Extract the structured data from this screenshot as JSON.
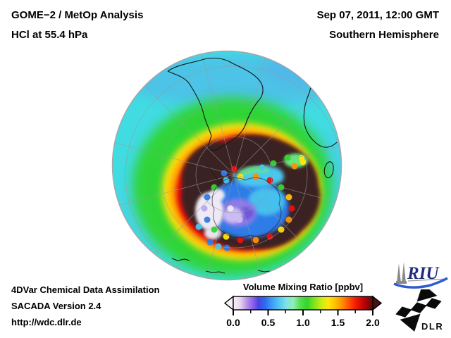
{
  "header": {
    "instrument": "GOME−2 / MetOp Analysis",
    "species_level": "HCl at 55.4 hPa",
    "datetime": "Sep 07, 2011, 12:00 GMT",
    "hemisphere": "Southern Hemisphere"
  },
  "footer": {
    "assimilation": "4DVar Chemical Data Assimilation",
    "version": "SACADA Version 2.4",
    "url": "http://wdc.dlr.de"
  },
  "colorbar": {
    "title": "Volume Mixing Ratio [ppbv]",
    "min": 0.0,
    "max": 2.0,
    "tick_labels": [
      "0.0",
      "0.5",
      "1.0",
      "1.5",
      "2.0"
    ],
    "underflow_color": "#f8f1f5",
    "overflow_color": "#46120e",
    "gradient": [
      [
        0.0,
        "#f8f1f5"
      ],
      [
        0.05,
        "#e9d4f0"
      ],
      [
        0.1,
        "#b48cee"
      ],
      [
        0.15,
        "#7e5ae8"
      ],
      [
        0.18,
        "#4a42e4"
      ],
      [
        0.23,
        "#2e6cf0"
      ],
      [
        0.28,
        "#3fa0f4"
      ],
      [
        0.33,
        "#55c6f2"
      ],
      [
        0.38,
        "#7fe2e8"
      ],
      [
        0.43,
        "#92eeb2"
      ],
      [
        0.48,
        "#52e04e"
      ],
      [
        0.53,
        "#35d42c"
      ],
      [
        0.58,
        "#7fe41e"
      ],
      [
        0.63,
        "#c6ee12"
      ],
      [
        0.68,
        "#ffe60a"
      ],
      [
        0.73,
        "#ffc004"
      ],
      [
        0.78,
        "#ff9000"
      ],
      [
        0.83,
        "#ff5000"
      ],
      [
        0.88,
        "#f01808"
      ],
      [
        0.93,
        "#c40404"
      ],
      [
        0.97,
        "#8c0606"
      ],
      [
        1.0,
        "#46120e"
      ]
    ]
  },
  "map": {
    "ocean_base": "#41dce2",
    "band_blue": "#58aaec",
    "ring_green": "#2ed42e",
    "ring_yellow": "#ffe60a",
    "ring_orange": "#ff9000",
    "ring_red": "#e81010",
    "vortex_dark": "#3a2322",
    "cluster_blue": "#2e7be8",
    "cluster_cyan": "#49c8f0",
    "cluster_purple": "#8f7ae8",
    "cluster_lavender": "#cabcf2",
    "cluster_white": "#efe9f6",
    "graticule": "#9a9a9a",
    "coastline": "#151515",
    "rim": "#a8a8a8"
  },
  "logos": {
    "riu": "RIU",
    "dlr": "DLR"
  }
}
